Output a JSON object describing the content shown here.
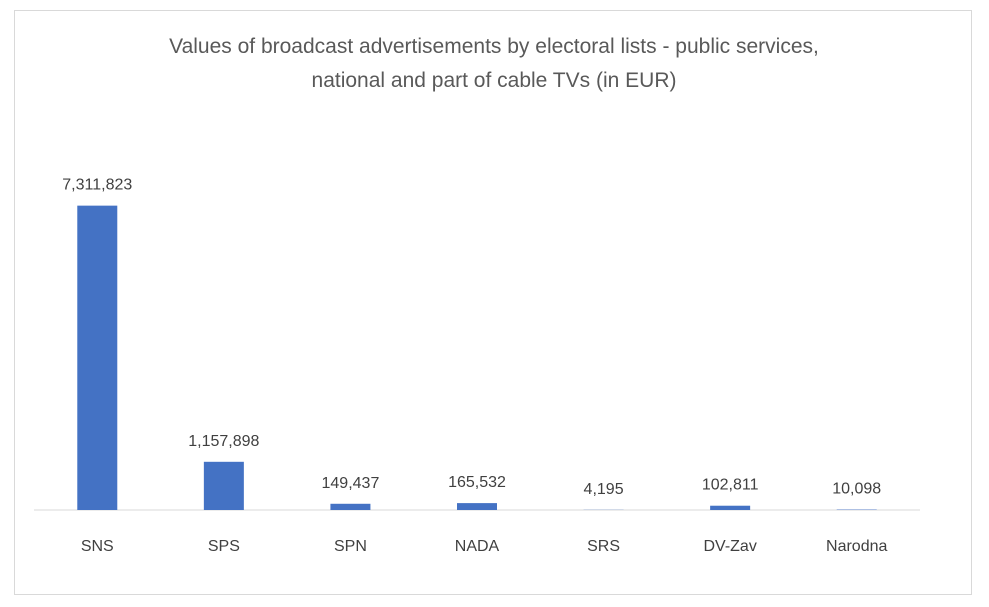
{
  "chart_data": {
    "type": "bar",
    "title": "Values of broadcast advertisements by electoral lists - public services, national and part of cable TVs (in EUR)",
    "categories": [
      "SNS",
      "SPS",
      "SPN",
      "NADA",
      "SRS",
      "DV-Zav",
      "Narodna"
    ],
    "values": [
      7311823,
      1157898,
      149437,
      165532,
      4195,
      102811,
      10098
    ],
    "value_labels": [
      "7,311,823",
      "1,157,898",
      "149,437",
      "165,532",
      "4,195",
      "102,811",
      "10,098"
    ],
    "color": "#4472c4",
    "ylim": [
      0,
      8000000
    ]
  }
}
